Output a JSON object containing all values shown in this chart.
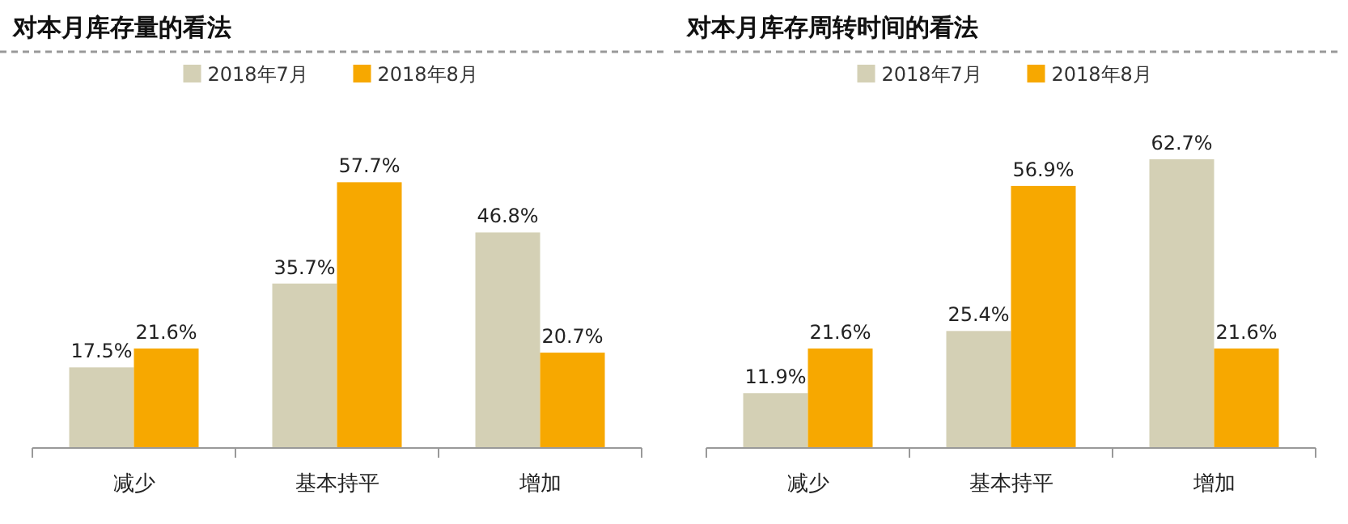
{
  "chart_data": [
    {
      "type": "bar",
      "title": "对本月库存量的看法",
      "categories": [
        "减少",
        "基本持平",
        "增加"
      ],
      "series": [
        {
          "name": "2018年7月",
          "color": "#d4d0b5",
          "values": [
            17.5,
            35.7,
            46.8
          ],
          "value_labels": [
            "17.5%",
            "35.7%",
            "46.8%"
          ]
        },
        {
          "name": "2018年8月",
          "color": "#f7a800",
          "values": [
            21.6,
            57.7,
            20.7
          ],
          "value_labels": [
            "21.6%",
            "57.7%",
            "20.7%"
          ]
        }
      ],
      "legend": "top",
      "grid": false
    },
    {
      "type": "bar",
      "title": "对本月库存周转时间的看法",
      "categories": [
        "减少",
        "基本持平",
        "增加"
      ],
      "series": [
        {
          "name": "2018年7月",
          "color": "#d4d0b5",
          "values": [
            11.9,
            25.4,
            62.7
          ],
          "value_labels": [
            "11.9%",
            "25.4%",
            "62.7%"
          ]
        },
        {
          "name": "2018年8月",
          "color": "#f7a800",
          "values": [
            21.6,
            56.9,
            21.6
          ],
          "value_labels": [
            "21.6%",
            "56.9%",
            "21.6%"
          ]
        }
      ],
      "legend": "top",
      "grid": false
    }
  ]
}
